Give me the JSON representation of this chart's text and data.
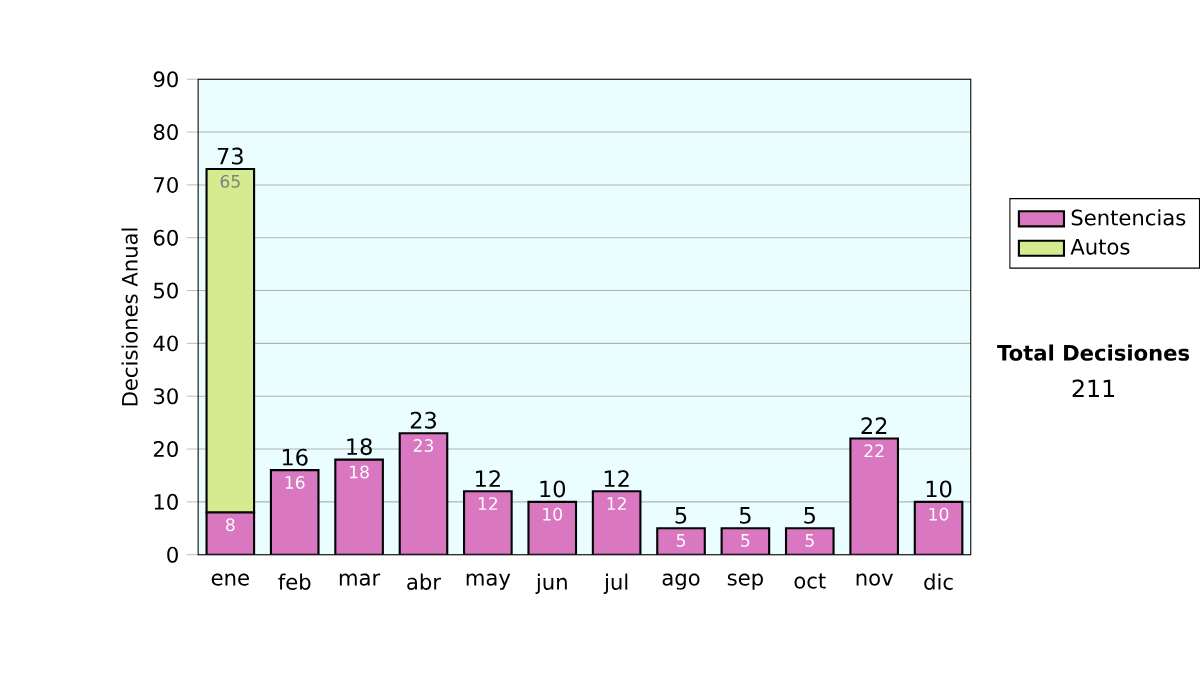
{
  "chart_data": {
    "type": "bar",
    "stacked": true,
    "ylabel": "Decisiones Anual",
    "categories": [
      "ene",
      "feb",
      "mar",
      "abr",
      "may",
      "jun",
      "jul",
      "ago",
      "sep",
      "oct",
      "nov",
      "dic"
    ],
    "series": [
      {
        "name": "Sentencias",
        "color": "#d977c0",
        "values": [
          8,
          16,
          18,
          23,
          12,
          10,
          12,
          5,
          5,
          5,
          22,
          10
        ]
      },
      {
        "name": "Autos",
        "color": "#d4ec8f",
        "values": [
          65,
          null,
          null,
          null,
          null,
          null,
          null,
          null,
          null,
          null,
          null,
          null
        ]
      }
    ],
    "ylim": [
      0,
      90
    ],
    "yticks": [
      0,
      10,
      20,
      30,
      40,
      50,
      60,
      70,
      80,
      90
    ],
    "grid": "y",
    "legend": "right",
    "data_labels": true,
    "totals": [
      "73",
      "16",
      "18",
      "23",
      "12",
      "10",
      "12",
      "5",
      "5",
      "5",
      "22",
      "10"
    ],
    "annotations": [
      "Total Decisiones",
      "211"
    ]
  }
}
